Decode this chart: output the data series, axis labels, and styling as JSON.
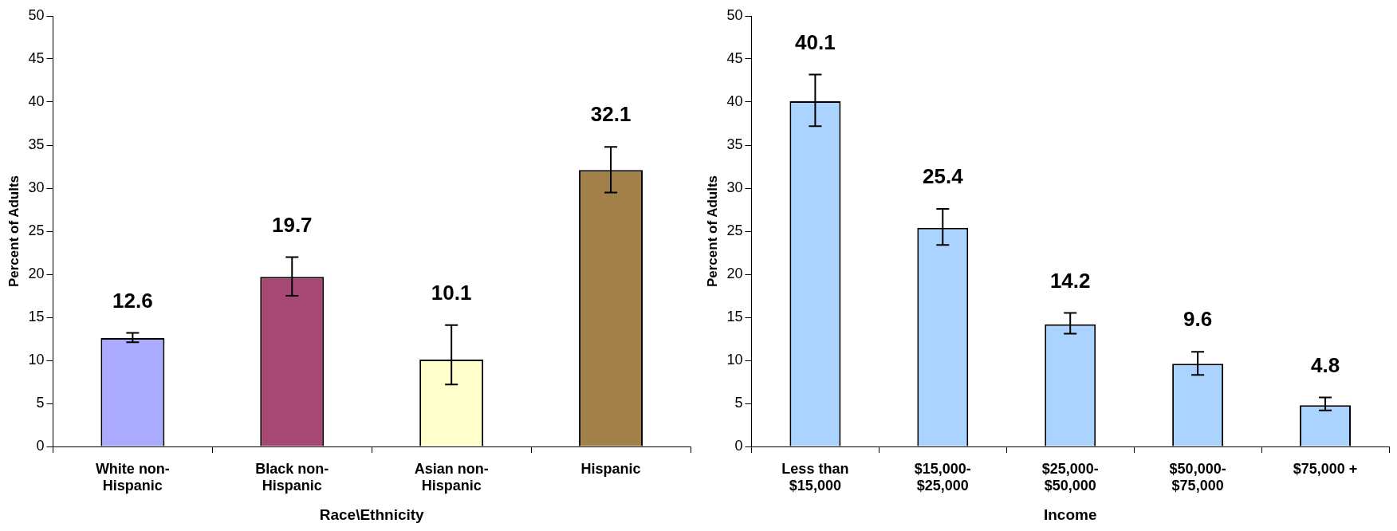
{
  "chart_data": [
    {
      "type": "bar",
      "xlabel": "Race\\Ethnicity",
      "ylabel": "Percent of Adults",
      "categories": [
        "White non-\nHispanic",
        "Black non-\nHispanic",
        "Asian non-\nHispanic",
        "Hispanic"
      ],
      "values": [
        12.6,
        19.7,
        10.1,
        32.1
      ],
      "colors": [
        "#aaaaff",
        "#a64873",
        "#ffffcc",
        "#a2804a"
      ],
      "errors": [
        [
          12.1,
          13.2
        ],
        [
          17.5,
          22.0
        ],
        [
          7.2,
          14.1
        ],
        [
          29.5,
          34.8
        ]
      ],
      "ylim": [
        0,
        50
      ],
      "yticks": [
        0,
        5,
        10,
        15,
        20,
        25,
        30,
        35,
        40,
        45,
        50
      ],
      "grid": false,
      "legend": false,
      "data_labels": true
    },
    {
      "type": "bar",
      "xlabel": "Income",
      "ylabel": "Percent of Adults",
      "categories": [
        "Less than\n$15,000",
        "$15,000-\n$25,000",
        "$25,000-\n$50,000",
        "$50,000-\n$75,000",
        "$75,000 +"
      ],
      "values": [
        40.1,
        25.4,
        14.2,
        9.6,
        4.8
      ],
      "color": "#aad4ff",
      "errors": [
        [
          37.2,
          43.2
        ],
        [
          23.4,
          27.6
        ],
        [
          13.1,
          15.5
        ],
        [
          8.3,
          11.0
        ],
        [
          4.2,
          5.7
        ]
      ],
      "ylim": [
        0,
        50
      ],
      "yticks": [
        0,
        5,
        10,
        15,
        20,
        25,
        30,
        35,
        40,
        45,
        50
      ],
      "grid": false,
      "legend": false,
      "data_labels": true
    }
  ]
}
